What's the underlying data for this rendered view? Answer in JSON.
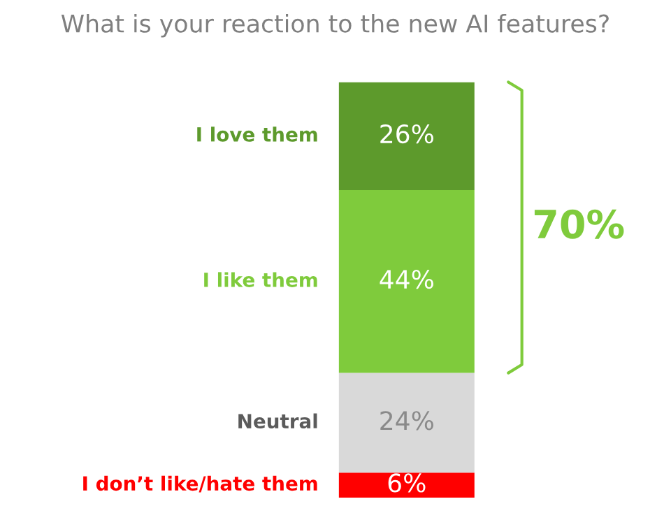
{
  "chart_data": {
    "type": "bar",
    "stacked": true,
    "title": "What is your reaction to the new AI features?",
    "categories": [
      null
    ],
    "series": [
      {
        "name": "I don’t like/hate them",
        "color": "#ff0000",
        "values": [
          6
        ],
        "value_labels": [
          "6%"
        ]
      },
      {
        "name": "Neutral",
        "color": "#d9d9d9",
        "values": [
          24
        ],
        "value_labels": [
          "24%"
        ]
      },
      {
        "name": "I like them",
        "color": "#7fcb3c",
        "values": [
          44
        ],
        "value_labels": [
          "44%"
        ]
      },
      {
        "name": "I love them",
        "color": "#5d9a2c",
        "values": [
          26
        ],
        "value_labels": [
          "26%"
        ]
      }
    ],
    "annotations": [
      "70%"
    ],
    "legend": false
  }
}
